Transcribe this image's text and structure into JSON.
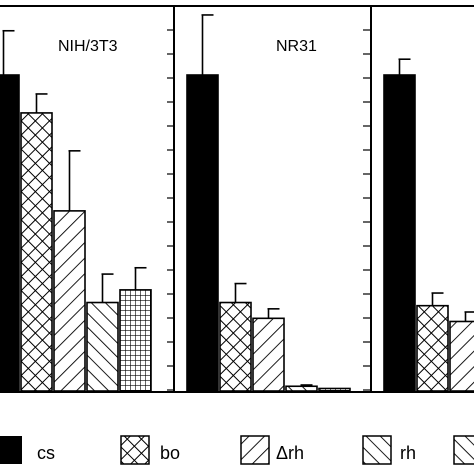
{
  "chart_data": {
    "type": "bar",
    "ylim": [
      0,
      100
    ],
    "series": [
      {
        "name": "cs"
      },
      {
        "name": "bo"
      },
      {
        "name": "Δrh"
      },
      {
        "name": "rh"
      },
      {
        "name": ""
      }
    ],
    "panels": [
      {
        "title": "NIH/3T3",
        "values": [
          100,
          88,
          57,
          28,
          32
        ],
        "errors": [
          14,
          6,
          19,
          9,
          7
        ]
      },
      {
        "title": "NR31",
        "values": [
          100,
          28,
          23,
          1.5,
          0.8
        ],
        "errors": [
          19,
          6,
          3,
          0.4,
          0.3
        ]
      },
      {
        "title": "",
        "values": [
          100,
          27,
          22
        ],
        "errors": [
          5,
          4,
          3
        ]
      }
    ]
  },
  "colors": {
    "ink": "#000000",
    "background": "#ffffff"
  },
  "legend": {
    "items": [
      {
        "label": "cs",
        "pattern": "solid"
      },
      {
        "label": "bo",
        "pattern": "crosshatch-diagonal"
      },
      {
        "label": "Δrh",
        "pattern": "diagonal-up"
      },
      {
        "label": "rh",
        "pattern": "diagonal-down"
      }
    ]
  }
}
